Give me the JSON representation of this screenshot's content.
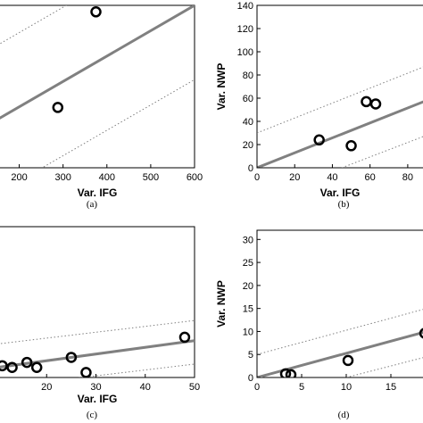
{
  "chart_data": [
    {
      "id": "a",
      "type": "scatter",
      "caption": "(a)",
      "xlabel": "Var. IFG",
      "ylabel": "",
      "xlim": [
        150,
        600
      ],
      "ylim": [
        0,
        175
      ],
      "xticks": [
        200,
        300,
        400,
        500,
        600
      ],
      "yticks": [],
      "points": [
        {
          "x": 288,
          "y": 65
        },
        {
          "x": 375,
          "y": 168
        }
      ],
      "fit": {
        "x": [
          150,
          600
        ],
        "y": [
          52,
          175
        ]
      },
      "bounds": [
        {
          "x": [
            150,
            600
          ],
          "y": [
            132,
            255
          ]
        },
        {
          "x": [
            150,
            600
          ],
          "y": [
            -28,
            95
          ]
        }
      ]
    },
    {
      "id": "b",
      "type": "scatter",
      "caption": "(b)",
      "xlabel": "Var. IFG",
      "ylabel": "Var. NWP",
      "xlim": [
        0,
        90
      ],
      "ylim": [
        0,
        140
      ],
      "xticks": [
        0,
        20,
        40,
        60,
        80
      ],
      "yticks": [
        0,
        20,
        40,
        60,
        80,
        100,
        120,
        140
      ],
      "points": [
        {
          "x": 33,
          "y": 24
        },
        {
          "x": 50,
          "y": 19
        },
        {
          "x": 58,
          "y": 57
        },
        {
          "x": 63,
          "y": 55
        }
      ],
      "fit": {
        "x": [
          0,
          90
        ],
        "y": [
          0,
          58
        ]
      },
      "bounds": [
        {
          "x": [
            0,
            90
          ],
          "y": [
            30,
            88
          ]
        },
        {
          "x": [
            45,
            90
          ],
          "y": [
            0,
            28
          ]
        }
      ]
    },
    {
      "id": "c",
      "type": "scatter",
      "caption": "(c)",
      "xlabel": "Var. IFG",
      "ylabel": "",
      "xlim": [
        10,
        50
      ],
      "ylim": [
        0,
        45
      ],
      "xticks": [
        20,
        30,
        40,
        50
      ],
      "yticks": [],
      "points": [
        {
          "x": 11,
          "y": 3.5
        },
        {
          "x": 13,
          "y": 3.0
        },
        {
          "x": 16,
          "y": 4.5
        },
        {
          "x": 18,
          "y": 3.0
        },
        {
          "x": 25,
          "y": 6.0
        },
        {
          "x": 28,
          "y": 1.5
        },
        {
          "x": 48,
          "y": 12
        }
      ],
      "fit": {
        "x": [
          10,
          50
        ],
        "y": [
          3,
          11
        ]
      },
      "bounds": [
        {
          "x": [
            10,
            50
          ],
          "y": [
            10,
            17
          ]
        },
        {
          "x": [
            10,
            50
          ],
          "y": [
            -3,
            4
          ]
        }
      ]
    },
    {
      "id": "d",
      "type": "scatter",
      "caption": "(d)",
      "xlabel": "",
      "ylabel": "Var. NWP",
      "xlim": [
        0,
        19
      ],
      "ylim": [
        0,
        32
      ],
      "xticks": [
        0,
        5,
        10,
        15
      ],
      "yticks": [
        0,
        5,
        10,
        15,
        20,
        25,
        30
      ],
      "points": [
        {
          "x": 3.2,
          "y": 0.8
        },
        {
          "x": 3.8,
          "y": 0.6
        },
        {
          "x": 10.2,
          "y": 3.7
        },
        {
          "x": 18.8,
          "y": 9.6
        }
      ],
      "fit": {
        "x": [
          0,
          19
        ],
        "y": [
          0,
          10
        ]
      },
      "bounds": [
        {
          "x": [
            0,
            19
          ],
          "y": [
            5,
            15
          ]
        },
        {
          "x": [
            10,
            19
          ],
          "y": [
            0,
            4.5
          ]
        }
      ]
    }
  ]
}
